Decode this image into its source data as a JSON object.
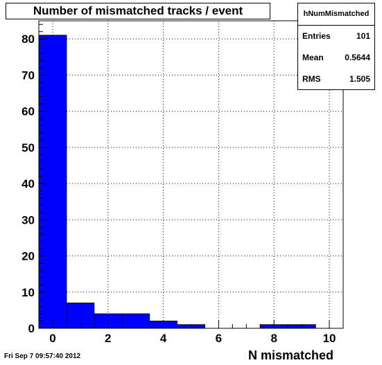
{
  "chart_data": {
    "type": "bar",
    "title": "Number of mismatched tracks / event",
    "xlabel": "N mismatched",
    "ylabel": "",
    "bin_edges": [
      -0.5,
      0.5,
      1.5,
      2.5,
      3.5,
      4.5,
      5.5,
      6.5,
      7.5,
      8.5,
      9.5,
      10.5
    ],
    "values": [
      81,
      7,
      4,
      4,
      2,
      1,
      0,
      0,
      1,
      1,
      0
    ],
    "xlim": [
      -0.5,
      10.5
    ],
    "ylim": [
      0,
      85
    ],
    "xticks": [
      0,
      2,
      4,
      6,
      8,
      10
    ],
    "yticks": [
      0,
      10,
      20,
      30,
      40,
      50,
      60,
      70,
      80
    ],
    "grid": true,
    "bar_color": "#0000ff"
  },
  "stats": {
    "name": "hNumMismatched",
    "entries_label": "Entries",
    "entries_value": "101",
    "mean_label": "Mean",
    "mean_value": "0.5644",
    "rms_label": "RMS",
    "rms_value": "1.505"
  },
  "timestamp": "Fri Sep  7 09:57:40 2012"
}
